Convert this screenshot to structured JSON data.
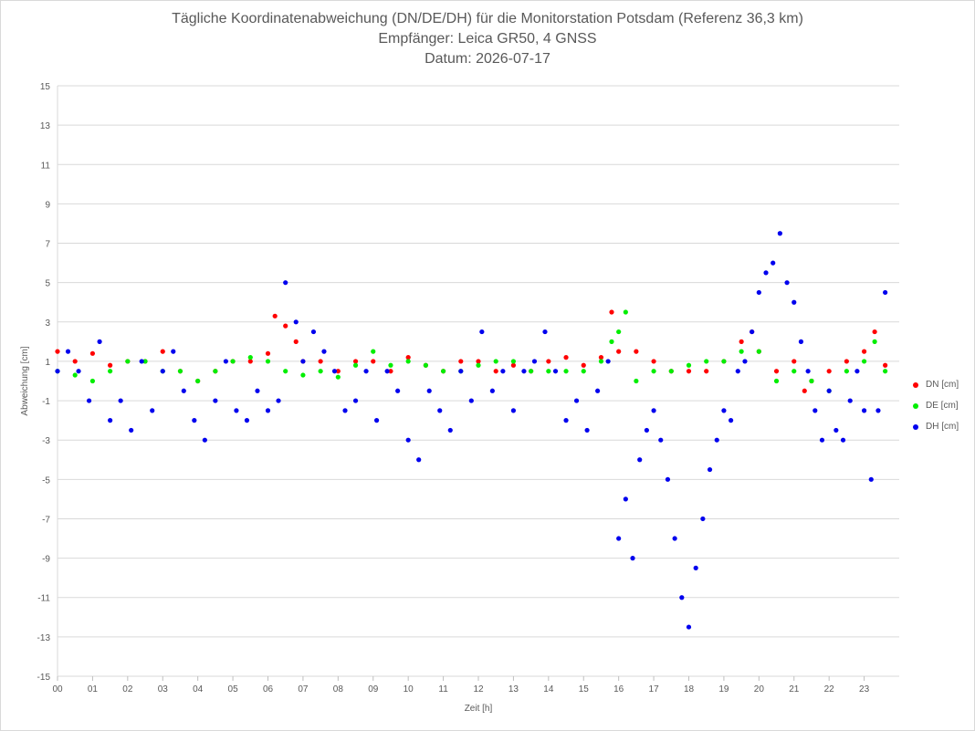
{
  "chart_data": {
    "type": "scatter",
    "title": "Tägliche Koordinatenabweichung (DN/DE/DH) für die Monitorstation Potsdam (Referenz 36,3 km)",
    "subtitle1": "Empfänger: Leica GR50, 4 GNSS",
    "subtitle2": "Datum: 2026-07-17",
    "xlabel": "Zeit [h]",
    "ylabel": "Abweichung [cm]",
    "xlim": [
      0,
      24
    ],
    "ylim": [
      -15,
      15
    ],
    "x_ticks": [
      "00",
      "01",
      "02",
      "03",
      "04",
      "05",
      "06",
      "07",
      "08",
      "09",
      "10",
      "11",
      "12",
      "13",
      "14",
      "15",
      "16",
      "17",
      "18",
      "19",
      "20",
      "21",
      "22",
      "23"
    ],
    "y_ticks": [
      15,
      13,
      11,
      9,
      7,
      5,
      3,
      1,
      -1,
      -3,
      -5,
      -7,
      -9,
      -11,
      -13,
      -15
    ],
    "grid": "horizontal",
    "legend_position": "right",
    "series": [
      {
        "name": "DN [cm]",
        "color": "#ff0000",
        "x": [
          0.0,
          0.5,
          1.0,
          1.5,
          2.0,
          2.5,
          3.0,
          3.5,
          4.0,
          4.5,
          5.0,
          5.5,
          6.0,
          6.2,
          6.5,
          6.8,
          7.0,
          7.5,
          8.0,
          8.5,
          9.0,
          9.5,
          10.0,
          10.5,
          11.0,
          11.5,
          12.0,
          12.5,
          13.0,
          13.5,
          14.0,
          14.5,
          15.0,
          15.5,
          15.8,
          16.0,
          16.5,
          17.0,
          17.5,
          18.0,
          18.5,
          19.0,
          19.5,
          19.8,
          20.0,
          20.5,
          21.0,
          21.3,
          21.5,
          22.0,
          22.5,
          23.0,
          23.3,
          23.6
        ],
        "y": [
          1.5,
          1.0,
          1.4,
          0.8,
          1.0,
          1.0,
          1.5,
          0.5,
          0.0,
          0.5,
          1.0,
          1.0,
          1.4,
          3.3,
          2.8,
          2.0,
          1.0,
          1.0,
          0.5,
          1.0,
          1.0,
          0.5,
          1.2,
          0.8,
          0.5,
          1.0,
          1.0,
          0.5,
          0.8,
          0.5,
          1.0,
          1.2,
          0.8,
          1.2,
          3.5,
          1.5,
          1.5,
          1.0,
          0.5,
          0.5,
          0.5,
          1.0,
          2.0,
          2.5,
          1.5,
          0.5,
          1.0,
          -0.5,
          0.0,
          0.5,
          1.0,
          1.5,
          2.5,
          0.8
        ]
      },
      {
        "name": "DE [cm]",
        "color": "#00ee00",
        "x": [
          0.0,
          0.5,
          1.0,
          1.5,
          2.0,
          2.5,
          3.0,
          3.5,
          4.0,
          4.5,
          5.0,
          5.5,
          6.0,
          6.5,
          7.0,
          7.5,
          8.0,
          8.5,
          9.0,
          9.5,
          10.0,
          10.5,
          11.0,
          11.5,
          12.0,
          12.5,
          13.0,
          13.5,
          14.0,
          14.5,
          15.0,
          15.5,
          15.8,
          16.0,
          16.2,
          16.5,
          17.0,
          17.5,
          18.0,
          18.5,
          19.0,
          19.5,
          20.0,
          20.5,
          21.0,
          21.5,
          22.0,
          22.5,
          23.0,
          23.3,
          23.6
        ],
        "y": [
          0.5,
          0.3,
          0.0,
          0.5,
          1.0,
          1.0,
          0.5,
          0.5,
          0.0,
          0.5,
          1.0,
          1.2,
          1.0,
          0.5,
          0.3,
          0.5,
          0.2,
          0.8,
          1.5,
          0.8,
          1.0,
          0.8,
          0.5,
          0.5,
          0.8,
          1.0,
          1.0,
          0.5,
          0.5,
          0.5,
          0.5,
          1.0,
          2.0,
          2.5,
          3.5,
          0.0,
          0.5,
          0.5,
          0.8,
          1.0,
          1.0,
          1.5,
          1.5,
          0.0,
          0.5,
          0.0,
          -0.5,
          0.5,
          1.0,
          2.0,
          0.5
        ]
      },
      {
        "name": "DH [cm]",
        "color": "#0000ee",
        "x": [
          0.0,
          0.3,
          0.6,
          0.9,
          1.2,
          1.5,
          1.8,
          2.1,
          2.4,
          2.7,
          3.0,
          3.3,
          3.6,
          3.9,
          4.2,
          4.5,
          4.8,
          5.1,
          5.4,
          5.7,
          6.0,
          6.3,
          6.5,
          6.8,
          7.0,
          7.3,
          7.6,
          7.9,
          8.2,
          8.5,
          8.8,
          9.1,
          9.4,
          9.7,
          10.0,
          10.3,
          10.6,
          10.9,
          11.2,
          11.5,
          11.8,
          12.1,
          12.4,
          12.7,
          13.0,
          13.3,
          13.6,
          13.9,
          14.2,
          14.5,
          14.8,
          15.1,
          15.4,
          15.7,
          16.0,
          16.2,
          16.4,
          16.6,
          16.8,
          17.0,
          17.2,
          17.4,
          17.6,
          17.8,
          18.0,
          18.2,
          18.4,
          18.6,
          18.8,
          19.0,
          19.2,
          19.4,
          19.6,
          19.8,
          20.0,
          20.2,
          20.4,
          20.6,
          20.8,
          21.0,
          21.2,
          21.4,
          21.6,
          21.8,
          22.0,
          22.2,
          22.4,
          22.6,
          22.8,
          23.0,
          23.2,
          23.4,
          23.6
        ],
        "y": [
          0.5,
          1.5,
          0.5,
          -1.0,
          2.0,
          -2.0,
          -1.0,
          -2.5,
          1.0,
          -1.5,
          0.5,
          1.5,
          -0.5,
          -2.0,
          -3.0,
          -1.0,
          1.0,
          -1.5,
          -2.0,
          -0.5,
          -1.5,
          -1.0,
          5.0,
          3.0,
          1.0,
          2.5,
          1.5,
          0.5,
          -1.5,
          -1.0,
          0.5,
          -2.0,
          0.5,
          -0.5,
          -3.0,
          -4.0,
          -0.5,
          -1.5,
          -2.5,
          0.5,
          -1.0,
          2.5,
          -0.5,
          0.5,
          -1.5,
          0.5,
          1.0,
          2.5,
          0.5,
          -2.0,
          -1.0,
          -2.5,
          -0.5,
          1.0,
          -8.0,
          -6.0,
          -9.0,
          -4.0,
          -2.5,
          -1.5,
          -3.0,
          -5.0,
          -8.0,
          -11.0,
          -12.5,
          -9.5,
          -7.0,
          -4.5,
          -3.0,
          -1.5,
          -2.0,
          0.5,
          1.0,
          2.5,
          4.5,
          5.5,
          6.0,
          7.5,
          5.0,
          4.0,
          2.0,
          0.5,
          -1.5,
          -3.0,
          -0.5,
          -2.5,
          -3.0,
          -1.0,
          0.5,
          -1.5,
          -5.0,
          -1.5,
          4.5
        ]
      }
    ]
  }
}
